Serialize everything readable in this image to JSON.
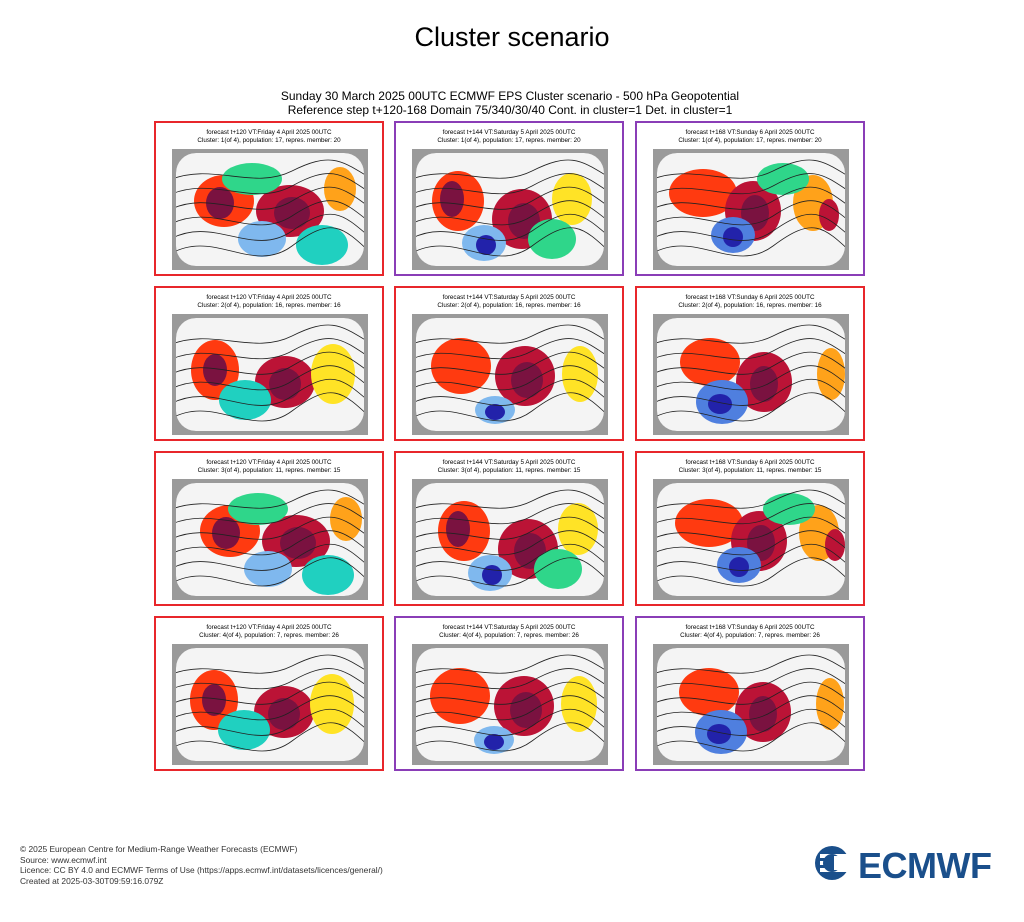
{
  "page_title": "Cluster scenario",
  "chart_header": {
    "line1": "Sunday 30 March 2025 00UTC ECMWF EPS Cluster scenario - 500 hPa Geopotential",
    "line2": "Reference step t+120-168 Domain 75/340/30/40 Cont. in cluster=1 Det. in cluster=1"
  },
  "border_colors": {
    "red": "#e8262b",
    "purple": "#8a3db7"
  },
  "anomaly_colors": [
    "#2222aa",
    "#4f7fdf",
    "#7fb8ee",
    "#20d0c0",
    "#2fd68a",
    "#b8ef2a",
    "#ffe326",
    "#ffa21a",
    "#ff3a10",
    "#bb1336",
    "#7a1240"
  ],
  "panels": [
    {
      "row": 1,
      "col": 1,
      "frame": "red",
      "line1": "forecast t+120 VT:Friday 4 April 2025 00UTC",
      "line2": "Cluster: 1(of 4), population: 17, repres. member: 20"
    },
    {
      "row": 1,
      "col": 2,
      "frame": "purple",
      "line1": "forecast t+144 VT:Saturday 5 April 2025 00UTC",
      "line2": "Cluster: 1(of 4), population: 17, repres. member: 20"
    },
    {
      "row": 1,
      "col": 3,
      "frame": "purple",
      "line1": "forecast t+168 VT:Sunday 6 April 2025 00UTC",
      "line2": "Cluster: 1(of 4), population: 17, repres. member: 20"
    },
    {
      "row": 2,
      "col": 1,
      "frame": "red",
      "line1": "forecast t+120 VT:Friday 4 April 2025 00UTC",
      "line2": "Cluster: 2(of 4), population: 16, repres. member: 16"
    },
    {
      "row": 2,
      "col": 2,
      "frame": "red",
      "line1": "forecast t+144 VT:Saturday 5 April 2025 00UTC",
      "line2": "Cluster: 2(of 4), population: 16, repres. member: 16"
    },
    {
      "row": 2,
      "col": 3,
      "frame": "red",
      "line1": "forecast t+168 VT:Sunday 6 April 2025 00UTC",
      "line2": "Cluster: 2(of 4), population: 16, repres. member: 16"
    },
    {
      "row": 3,
      "col": 1,
      "frame": "red",
      "line1": "forecast t+120 VT:Friday 4 April 2025 00UTC",
      "line2": "Cluster: 3(of 4), population: 11, repres. member: 15"
    },
    {
      "row": 3,
      "col": 2,
      "frame": "red",
      "line1": "forecast t+144 VT:Saturday 5 April 2025 00UTC",
      "line2": "Cluster: 3(of 4), population: 11, repres. member: 15"
    },
    {
      "row": 3,
      "col": 3,
      "frame": "red",
      "line1": "forecast t+168 VT:Sunday 6 April 2025 00UTC",
      "line2": "Cluster: 3(of 4), population: 11, repres. member: 15"
    },
    {
      "row": 4,
      "col": 1,
      "frame": "red",
      "line1": "forecast t+120 VT:Friday 4 April 2025 00UTC",
      "line2": "Cluster: 4(of 4), population: 7, repres. member: 26"
    },
    {
      "row": 4,
      "col": 2,
      "frame": "purple",
      "line1": "forecast t+144 VT:Saturday 5 April 2025 00UTC",
      "line2": "Cluster: 4(of 4), population: 7, repres. member: 26"
    },
    {
      "row": 4,
      "col": 3,
      "frame": "purple",
      "line1": "forecast t+168 VT:Sunday 6 April 2025 00UTC",
      "line2": "Cluster: 4(of 4), population: 7, repres. member: 26"
    }
  ],
  "footer": {
    "copyright": "© 2025 European Centre for Medium-Range Weather Forecasts (ECMWF)",
    "source": "Source: www.ecmwf.int",
    "licence": "Licence: CC BY 4.0 and ECMWF Terms of Use (https://apps.ecmwf.int/datasets/licences/general/)",
    "created": "Created at 2025-03-30T09:59:16.079Z"
  },
  "logo_text": "ECMWF"
}
